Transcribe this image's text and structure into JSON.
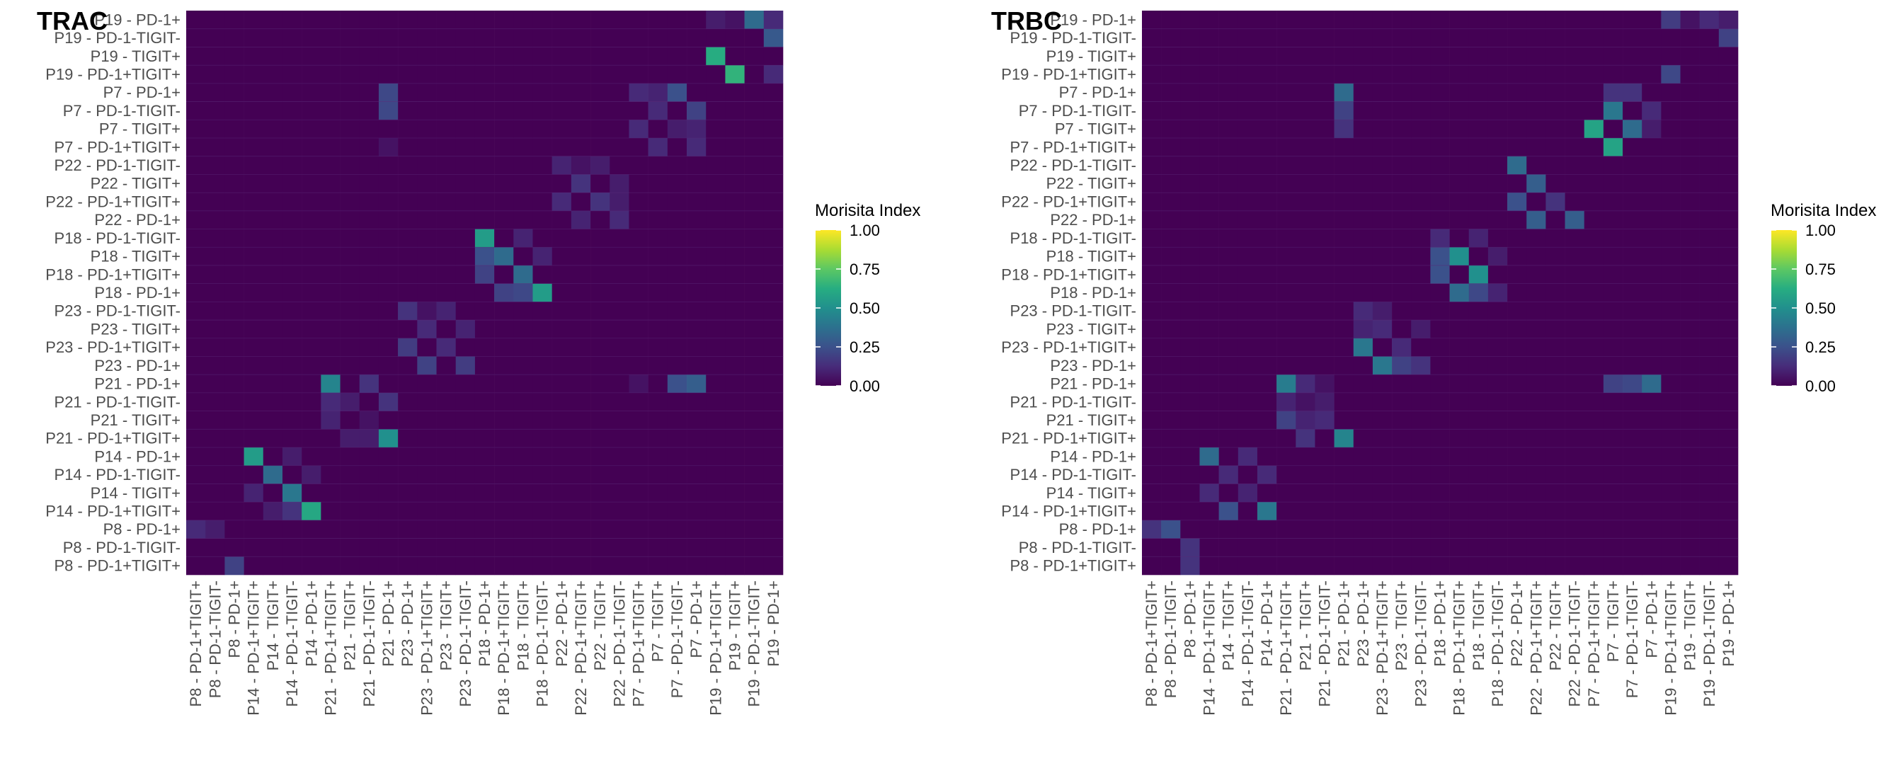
{
  "colormap": {
    "name": "viridis",
    "stops": [
      "#440154",
      "#472c7a",
      "#3b518b",
      "#2c718e",
      "#21908d",
      "#27ad81",
      "#5cc863",
      "#aadc32",
      "#fde725"
    ]
  },
  "chart_data": [
    {
      "type": "heatmap",
      "title": "TRAC",
      "legend_title": "Morisita Index",
      "legend_ticks": [
        "1.00",
        "0.75",
        "0.50",
        "0.25",
        "0.00"
      ],
      "value_range": [
        0,
        1
      ],
      "legend_position": "right",
      "x_labels": [
        "P8 - PD-1+TIGIT+",
        "P8 - PD-1-TIGIT-",
        "P8 - PD-1+",
        "P14 - PD-1+TIGIT+",
        "P14 - TIGIT+",
        "P14 - PD-1-TIGIT-",
        "P14 - PD-1+",
        "P21 - PD-1+TIGIT+",
        "P21 - TIGIT+",
        "P21 - PD-1-TIGIT-",
        "P21 - PD-1+",
        "P23 - PD-1+",
        "P23 - PD-1+TIGIT+",
        "P23 - TIGIT+",
        "P23 - PD-1-TIGIT-",
        "P18 - PD-1+",
        "P18 - PD-1+TIGIT+",
        "P18 - TIGIT+",
        "P18 - PD-1-TIGIT-",
        "P22 - PD-1+",
        "P22 - PD-1+TIGIT+",
        "P22 - TIGIT+",
        "P22 - PD-1-TIGIT-",
        "P7 - PD-1+TIGIT+",
        "P7 - TIGIT+",
        "P7 - PD-1-TIGIT-",
        "P7 - PD-1+",
        "P19 - PD-1+TIGIT+",
        "P19 - TIGIT+",
        "P19 - PD-1-TIGIT-",
        "P19 - PD-1+"
      ],
      "y_labels": [
        "P19 - PD-1+",
        "P19 - PD-1-TIGIT-",
        "P19 - TIGIT+",
        "P19 - PD-1+TIGIT+",
        "P7 - PD-1+",
        "P7 - PD-1-TIGIT-",
        "P7 - TIGIT+",
        "P7 - PD-1+TIGIT+",
        "P22 - PD-1-TIGIT-",
        "P22 - TIGIT+",
        "P22 - PD-1+TIGIT+",
        "P22 - PD-1+",
        "P18 - PD-1-TIGIT-",
        "P18 - TIGIT+",
        "P18 - PD-1+TIGIT+",
        "P18 - PD-1+",
        "P23 - PD-1-TIGIT-",
        "P23 - TIGIT+",
        "P23 - PD-1+TIGIT+",
        "P23 - PD-1+",
        "P21 - PD-1+",
        "P21 - PD-1-TIGIT-",
        "P21 - TIGIT+",
        "P21 - PD-1+TIGIT+",
        "P14 - PD-1+",
        "P14 - PD-1-TIGIT-",
        "P14 - TIGIT+",
        "P14 - PD-1+TIGIT+",
        "P8 - PD-1+",
        "P8 - PD-1-TIGIT-",
        "P8 - PD-1+TIGIT+"
      ],
      "cells": [
        [
          0,
          27,
          0.08
        ],
        [
          0,
          28,
          0.05
        ],
        [
          0,
          29,
          0.35
        ],
        [
          0,
          30,
          0.12
        ],
        [
          1,
          30,
          0.28
        ],
        [
          2,
          27,
          0.62
        ],
        [
          3,
          28,
          0.65
        ],
        [
          3,
          30,
          0.12
        ],
        [
          4,
          10,
          0.22
        ],
        [
          4,
          23,
          0.12
        ],
        [
          4,
          24,
          0.1
        ],
        [
          4,
          25,
          0.25
        ],
        [
          5,
          10,
          0.22
        ],
        [
          5,
          24,
          0.12
        ],
        [
          5,
          26,
          0.2
        ],
        [
          6,
          23,
          0.12
        ],
        [
          6,
          25,
          0.08
        ],
        [
          6,
          26,
          0.1
        ],
        [
          7,
          10,
          0.05
        ],
        [
          7,
          24,
          0.12
        ],
        [
          7,
          26,
          0.12
        ],
        [
          8,
          19,
          0.1
        ],
        [
          8,
          20,
          0.05
        ],
        [
          8,
          21,
          0.08
        ],
        [
          9,
          20,
          0.15
        ],
        [
          9,
          22,
          0.08
        ],
        [
          10,
          19,
          0.12
        ],
        [
          10,
          21,
          0.15
        ],
        [
          10,
          22,
          0.08
        ],
        [
          11,
          20,
          0.1
        ],
        [
          11,
          22,
          0.12
        ],
        [
          12,
          15,
          0.55
        ],
        [
          12,
          17,
          0.1
        ],
        [
          13,
          15,
          0.25
        ],
        [
          13,
          16,
          0.35
        ],
        [
          13,
          18,
          0.1
        ],
        [
          14,
          15,
          0.2
        ],
        [
          14,
          17,
          0.35
        ],
        [
          15,
          16,
          0.2
        ],
        [
          15,
          17,
          0.22
        ],
        [
          15,
          18,
          0.55
        ],
        [
          16,
          11,
          0.15
        ],
        [
          16,
          12,
          0.05
        ],
        [
          16,
          13,
          0.1
        ],
        [
          17,
          12,
          0.12
        ],
        [
          17,
          14,
          0.1
        ],
        [
          18,
          11,
          0.18
        ],
        [
          18,
          13,
          0.12
        ],
        [
          19,
          12,
          0.2
        ],
        [
          19,
          14,
          0.18
        ],
        [
          20,
          7,
          0.45
        ],
        [
          20,
          9,
          0.15
        ],
        [
          20,
          23,
          0.05
        ],
        [
          20,
          25,
          0.25
        ],
        [
          20,
          26,
          0.3
        ],
        [
          21,
          7,
          0.12
        ],
        [
          21,
          8,
          0.08
        ],
        [
          21,
          10,
          0.15
        ],
        [
          22,
          7,
          0.1
        ],
        [
          22,
          9,
          0.05
        ],
        [
          23,
          8,
          0.08
        ],
        [
          23,
          9,
          0.08
        ],
        [
          23,
          10,
          0.5
        ],
        [
          24,
          3,
          0.55
        ],
        [
          24,
          5,
          0.08
        ],
        [
          25,
          4,
          0.35
        ],
        [
          25,
          6,
          0.08
        ],
        [
          26,
          3,
          0.1
        ],
        [
          26,
          5,
          0.4
        ],
        [
          27,
          4,
          0.08
        ],
        [
          27,
          5,
          0.15
        ],
        [
          27,
          6,
          0.6
        ],
        [
          28,
          0,
          0.12
        ],
        [
          28,
          1,
          0.08
        ],
        [
          30,
          2,
          0.2
        ]
      ]
    },
    {
      "type": "heatmap",
      "title": "TRBC",
      "legend_title": "Morisita Index",
      "legend_ticks": [
        "1.00",
        "0.75",
        "0.50",
        "0.25",
        "0.00"
      ],
      "value_range": [
        0,
        1
      ],
      "legend_position": "right",
      "x_labels": [
        "P8 - PD-1+TIGIT+",
        "P8 - PD-1-TIGIT-",
        "P8 - PD-1+",
        "P14 - PD-1+TIGIT+",
        "P14 - TIGIT+",
        "P14 - PD-1-TIGIT-",
        "P14 - PD-1+",
        "P21 - PD-1+TIGIT+",
        "P21 - TIGIT+",
        "P21 - PD-1-TIGIT-",
        "P21 - PD-1+",
        "P23 - PD-1+",
        "P23 - PD-1+TIGIT+",
        "P23 - TIGIT+",
        "P23 - PD-1-TIGIT-",
        "P18 - PD-1+",
        "P18 - PD-1+TIGIT+",
        "P18 - TIGIT+",
        "P18 - PD-1-TIGIT-",
        "P22 - PD-1+",
        "P22 - PD-1+TIGIT+",
        "P22 - TIGIT+",
        "P22 - PD-1-TIGIT-",
        "P7 - PD-1+TIGIT+",
        "P7 - TIGIT+",
        "P7 - PD-1-TIGIT-",
        "P7 - PD-1+",
        "P19 - PD-1+TIGIT+",
        "P19 - TIGIT+",
        "P19 - PD-1-TIGIT-",
        "P19 - PD-1+"
      ],
      "y_labels": [
        "P19 - PD-1+",
        "P19 - PD-1-TIGIT-",
        "P19 - TIGIT+",
        "P19 - PD-1+TIGIT+",
        "P7 - PD-1+",
        "P7 - PD-1-TIGIT-",
        "P7 - TIGIT+",
        "P7 - PD-1+TIGIT+",
        "P22 - PD-1-TIGIT-",
        "P22 - TIGIT+",
        "P22 - PD-1+TIGIT+",
        "P22 - PD-1+",
        "P18 - PD-1-TIGIT-",
        "P18 - TIGIT+",
        "P18 - PD-1+TIGIT+",
        "P18 - PD-1+",
        "P23 - PD-1-TIGIT-",
        "P23 - TIGIT+",
        "P23 - PD-1+TIGIT+",
        "P23 - PD-1+",
        "P21 - PD-1+",
        "P21 - PD-1-TIGIT-",
        "P21 - TIGIT+",
        "P21 - PD-1+TIGIT+",
        "P14 - PD-1+",
        "P14 - PD-1-TIGIT-",
        "P14 - TIGIT+",
        "P14 - PD-1+TIGIT+",
        "P8 - PD-1+",
        "P8 - PD-1-TIGIT-",
        "P8 - PD-1+TIGIT+"
      ],
      "cells": [
        [
          0,
          27,
          0.18
        ],
        [
          0,
          28,
          0.05
        ],
        [
          0,
          29,
          0.12
        ],
        [
          0,
          30,
          0.08
        ],
        [
          1,
          30,
          0.2
        ],
        [
          3,
          27,
          0.22
        ],
        [
          4,
          10,
          0.35
        ],
        [
          4,
          24,
          0.15
        ],
        [
          4,
          25,
          0.15
        ],
        [
          5,
          10,
          0.2
        ],
        [
          5,
          24,
          0.4
        ],
        [
          5,
          26,
          0.12
        ],
        [
          6,
          10,
          0.15
        ],
        [
          6,
          23,
          0.58
        ],
        [
          6,
          25,
          0.35
        ],
        [
          6,
          26,
          0.08
        ],
        [
          7,
          24,
          0.58
        ],
        [
          8,
          19,
          0.35
        ],
        [
          9,
          20,
          0.3
        ],
        [
          10,
          19,
          0.25
        ],
        [
          10,
          21,
          0.15
        ],
        [
          11,
          20,
          0.3
        ],
        [
          11,
          22,
          0.3
        ],
        [
          12,
          15,
          0.12
        ],
        [
          12,
          17,
          0.1
        ],
        [
          13,
          15,
          0.25
        ],
        [
          13,
          16,
          0.5
        ],
        [
          13,
          18,
          0.08
        ],
        [
          14,
          15,
          0.25
        ],
        [
          14,
          17,
          0.5
        ],
        [
          15,
          16,
          0.35
        ],
        [
          15,
          17,
          0.22
        ],
        [
          15,
          18,
          0.1
        ],
        [
          16,
          11,
          0.12
        ],
        [
          16,
          12,
          0.08
        ],
        [
          17,
          11,
          0.1
        ],
        [
          17,
          12,
          0.12
        ],
        [
          17,
          14,
          0.08
        ],
        [
          18,
          11,
          0.4
        ],
        [
          18,
          13,
          0.12
        ],
        [
          19,
          12,
          0.4
        ],
        [
          19,
          13,
          0.2
        ],
        [
          19,
          14,
          0.15
        ],
        [
          20,
          7,
          0.42
        ],
        [
          20,
          8,
          0.12
        ],
        [
          20,
          9,
          0.05
        ],
        [
          20,
          24,
          0.2
        ],
        [
          20,
          25,
          0.22
        ],
        [
          20,
          26,
          0.35
        ],
        [
          21,
          7,
          0.1
        ],
        [
          21,
          8,
          0.05
        ],
        [
          21,
          9,
          0.08
        ],
        [
          22,
          7,
          0.2
        ],
        [
          22,
          8,
          0.1
        ],
        [
          22,
          9,
          0.12
        ],
        [
          23,
          8,
          0.15
        ],
        [
          23,
          10,
          0.45
        ],
        [
          24,
          3,
          0.35
        ],
        [
          24,
          5,
          0.12
        ],
        [
          25,
          4,
          0.12
        ],
        [
          25,
          6,
          0.12
        ],
        [
          26,
          3,
          0.12
        ],
        [
          26,
          5,
          0.1
        ],
        [
          27,
          4,
          0.25
        ],
        [
          27,
          6,
          0.4
        ],
        [
          28,
          0,
          0.15
        ],
        [
          28,
          1,
          0.25
        ],
        [
          29,
          2,
          0.15
        ],
        [
          30,
          2,
          0.15
        ]
      ]
    }
  ]
}
